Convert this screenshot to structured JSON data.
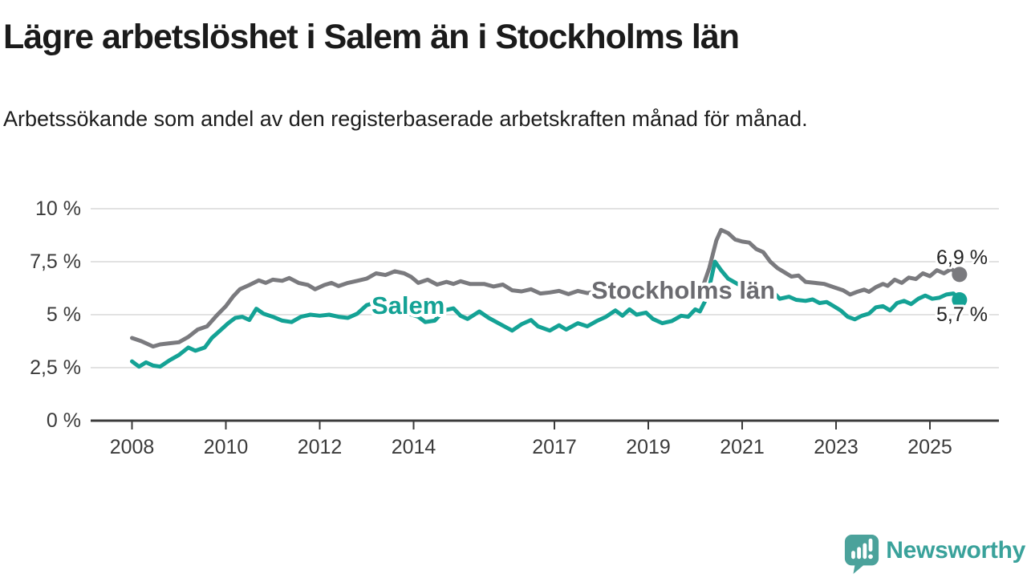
{
  "title": "Lägre arbetslöshet i Salem än i Stockholms län",
  "subtitle": "Arbetssökande som andel av den registerbaserade arbetskraften månad för månad.",
  "colors": {
    "salem_line": "#14a295",
    "stockholm_line": "#7a7a7e",
    "stockholm_label": "#6b6b70",
    "axis": "#3c3c3c",
    "grid": "#d9d9d9",
    "tick_text": "#3b3b3b",
    "value_text": "#232323",
    "logo_teal": "#4ba29b"
  },
  "annotations": {
    "salem_series_label": "Salem",
    "stockholm_series_label": "Stockholms län",
    "stockholm_end_value": "6,9 %",
    "salem_end_value": "5,7 %"
  },
  "logo": {
    "brand": "Newsworthy"
  },
  "chart_data": {
    "type": "line",
    "title": "Lägre arbetslöshet i Salem än i Stockholms län",
    "xlabel": "",
    "ylabel": "",
    "x_unit": "year (monthly data)",
    "xlim": [
      2007.9,
      2026.5
    ],
    "ylim": [
      0,
      10
    ],
    "grid": "horizontal",
    "legend_position": "inline-labels",
    "y_ticks": [
      {
        "value": 0,
        "label": "0 %"
      },
      {
        "value": 2.5,
        "label": "2,5 %"
      },
      {
        "value": 5,
        "label": "5 %"
      },
      {
        "value": 7.5,
        "label": "7,5 %"
      },
      {
        "value": 10,
        "label": "10 %"
      }
    ],
    "x_ticks": [
      {
        "value": 2008,
        "label": "2008"
      },
      {
        "value": 2010,
        "label": "2010"
      },
      {
        "value": 2012,
        "label": "2012"
      },
      {
        "value": 2014,
        "label": "2014"
      },
      {
        "value": 2017,
        "label": "2017"
      },
      {
        "value": 2019,
        "label": "2019"
      },
      {
        "value": 2021,
        "label": "2021"
      },
      {
        "value": 2023,
        "label": "2023"
      },
      {
        "value": 2025,
        "label": "2025"
      }
    ],
    "series": [
      {
        "name": "Stockholms län",
        "slug": "stockholms-lan",
        "color": "#7a7a7e",
        "end_label": "6,9 %",
        "end_value": 6.9,
        "points": [
          [
            2008.0,
            3.9
          ],
          [
            2008.2,
            3.75
          ],
          [
            2008.45,
            3.5
          ],
          [
            2008.6,
            3.6
          ],
          [
            2008.8,
            3.65
          ],
          [
            2009.0,
            3.7
          ],
          [
            2009.2,
            3.95
          ],
          [
            2009.4,
            4.3
          ],
          [
            2009.6,
            4.45
          ],
          [
            2009.8,
            4.95
          ],
          [
            2010.0,
            5.4
          ],
          [
            2010.15,
            5.85
          ],
          [
            2010.3,
            6.2
          ],
          [
            2010.5,
            6.4
          ],
          [
            2010.7,
            6.62
          ],
          [
            2010.85,
            6.5
          ],
          [
            2011.0,
            6.65
          ],
          [
            2011.2,
            6.6
          ],
          [
            2011.35,
            6.73
          ],
          [
            2011.55,
            6.5
          ],
          [
            2011.75,
            6.4
          ],
          [
            2011.9,
            6.2
          ],
          [
            2012.1,
            6.4
          ],
          [
            2012.25,
            6.5
          ],
          [
            2012.4,
            6.35
          ],
          [
            2012.6,
            6.5
          ],
          [
            2012.8,
            6.6
          ],
          [
            2013.0,
            6.7
          ],
          [
            2013.2,
            6.95
          ],
          [
            2013.4,
            6.87
          ],
          [
            2013.6,
            7.05
          ],
          [
            2013.8,
            6.95
          ],
          [
            2013.95,
            6.78
          ],
          [
            2014.1,
            6.5
          ],
          [
            2014.3,
            6.65
          ],
          [
            2014.5,
            6.42
          ],
          [
            2014.7,
            6.55
          ],
          [
            2014.85,
            6.45
          ],
          [
            2015.0,
            6.58
          ],
          [
            2015.2,
            6.45
          ],
          [
            2015.5,
            6.45
          ],
          [
            2015.7,
            6.33
          ],
          [
            2015.9,
            6.42
          ],
          [
            2016.1,
            6.15
          ],
          [
            2016.3,
            6.1
          ],
          [
            2016.5,
            6.2
          ],
          [
            2016.7,
            6.0
          ],
          [
            2016.9,
            6.05
          ],
          [
            2017.1,
            6.12
          ],
          [
            2017.3,
            5.97
          ],
          [
            2017.5,
            6.12
          ],
          [
            2017.7,
            6.02
          ],
          [
            2017.9,
            6.1
          ],
          [
            2018.2,
            6.05
          ],
          [
            2018.5,
            6.1
          ],
          [
            2018.8,
            6.02
          ],
          [
            2019.1,
            6.05
          ],
          [
            2019.4,
            6.1
          ],
          [
            2019.7,
            6.03
          ],
          [
            2019.95,
            6.1
          ],
          [
            2020.15,
            6.25
          ],
          [
            2020.3,
            7.2
          ],
          [
            2020.45,
            8.5
          ],
          [
            2020.55,
            9.0
          ],
          [
            2020.7,
            8.85
          ],
          [
            2020.85,
            8.55
          ],
          [
            2021.0,
            8.45
          ],
          [
            2021.15,
            8.4
          ],
          [
            2021.3,
            8.1
          ],
          [
            2021.45,
            7.95
          ],
          [
            2021.6,
            7.5
          ],
          [
            2021.75,
            7.2
          ],
          [
            2021.9,
            7.0
          ],
          [
            2022.05,
            6.8
          ],
          [
            2022.2,
            6.85
          ],
          [
            2022.35,
            6.55
          ],
          [
            2022.55,
            6.5
          ],
          [
            2022.75,
            6.45
          ],
          [
            2022.95,
            6.3
          ],
          [
            2023.15,
            6.15
          ],
          [
            2023.3,
            5.95
          ],
          [
            2023.45,
            6.08
          ],
          [
            2023.6,
            6.18
          ],
          [
            2023.7,
            6.08
          ],
          [
            2023.85,
            6.3
          ],
          [
            2024.0,
            6.45
          ],
          [
            2024.1,
            6.36
          ],
          [
            2024.25,
            6.65
          ],
          [
            2024.4,
            6.5
          ],
          [
            2024.55,
            6.75
          ],
          [
            2024.7,
            6.68
          ],
          [
            2024.85,
            6.95
          ],
          [
            2025.0,
            6.82
          ],
          [
            2025.15,
            7.1
          ],
          [
            2025.3,
            6.95
          ],
          [
            2025.45,
            7.15
          ],
          [
            2025.55,
            7.02
          ],
          [
            2025.63,
            6.9
          ]
        ]
      },
      {
        "name": "Salem",
        "slug": "salem",
        "color": "#14a295",
        "end_label": "5,7 %",
        "end_value": 5.7,
        "points": [
          [
            2008.0,
            2.8
          ],
          [
            2008.15,
            2.55
          ],
          [
            2008.3,
            2.75
          ],
          [
            2008.45,
            2.6
          ],
          [
            2008.6,
            2.55
          ],
          [
            2008.8,
            2.85
          ],
          [
            2009.0,
            3.1
          ],
          [
            2009.2,
            3.45
          ],
          [
            2009.35,
            3.3
          ],
          [
            2009.55,
            3.45
          ],
          [
            2009.7,
            3.9
          ],
          [
            2009.9,
            4.3
          ],
          [
            2010.05,
            4.6
          ],
          [
            2010.2,
            4.85
          ],
          [
            2010.35,
            4.9
          ],
          [
            2010.5,
            4.75
          ],
          [
            2010.65,
            5.28
          ],
          [
            2010.8,
            5.05
          ],
          [
            2011.0,
            4.9
          ],
          [
            2011.2,
            4.72
          ],
          [
            2011.4,
            4.65
          ],
          [
            2011.6,
            4.9
          ],
          [
            2011.8,
            5.0
          ],
          [
            2012.0,
            4.95
          ],
          [
            2012.2,
            5.0
          ],
          [
            2012.4,
            4.9
          ],
          [
            2012.6,
            4.85
          ],
          [
            2012.8,
            5.05
          ],
          [
            2013.0,
            5.45
          ],
          [
            2013.15,
            5.55
          ],
          [
            2013.3,
            5.28
          ],
          [
            2013.5,
            5.35
          ],
          [
            2013.7,
            5.15
          ],
          [
            2013.9,
            5.05
          ],
          [
            2014.1,
            4.9
          ],
          [
            2014.25,
            4.65
          ],
          [
            2014.45,
            4.72
          ],
          [
            2014.65,
            5.2
          ],
          [
            2014.85,
            5.3
          ],
          [
            2015.0,
            4.95
          ],
          [
            2015.15,
            4.8
          ],
          [
            2015.4,
            5.15
          ],
          [
            2015.6,
            4.85
          ],
          [
            2015.85,
            4.55
          ],
          [
            2016.1,
            4.25
          ],
          [
            2016.3,
            4.55
          ],
          [
            2016.5,
            4.75
          ],
          [
            2016.65,
            4.45
          ],
          [
            2016.9,
            4.25
          ],
          [
            2017.1,
            4.5
          ],
          [
            2017.25,
            4.3
          ],
          [
            2017.5,
            4.6
          ],
          [
            2017.7,
            4.45
          ],
          [
            2017.9,
            4.7
          ],
          [
            2018.1,
            4.9
          ],
          [
            2018.3,
            5.2
          ],
          [
            2018.45,
            4.95
          ],
          [
            2018.6,
            5.25
          ],
          [
            2018.75,
            5.0
          ],
          [
            2018.95,
            5.1
          ],
          [
            2019.1,
            4.8
          ],
          [
            2019.3,
            4.6
          ],
          [
            2019.5,
            4.7
          ],
          [
            2019.7,
            4.95
          ],
          [
            2019.85,
            4.9
          ],
          [
            2020.0,
            5.25
          ],
          [
            2020.1,
            5.15
          ],
          [
            2020.2,
            5.6
          ],
          [
            2020.3,
            6.3
          ],
          [
            2020.42,
            7.5
          ],
          [
            2020.55,
            7.1
          ],
          [
            2020.7,
            6.7
          ],
          [
            2020.9,
            6.45
          ],
          [
            2021.1,
            6.3
          ],
          [
            2021.3,
            6.25
          ],
          [
            2021.5,
            6.2
          ],
          [
            2021.65,
            6.1
          ],
          [
            2021.8,
            5.75
          ],
          [
            2022.0,
            5.85
          ],
          [
            2022.15,
            5.7
          ],
          [
            2022.35,
            5.65
          ],
          [
            2022.5,
            5.72
          ],
          [
            2022.65,
            5.55
          ],
          [
            2022.8,
            5.6
          ],
          [
            2022.95,
            5.4
          ],
          [
            2023.1,
            5.2
          ],
          [
            2023.25,
            4.9
          ],
          [
            2023.4,
            4.78
          ],
          [
            2023.55,
            4.95
          ],
          [
            2023.7,
            5.05
          ],
          [
            2023.85,
            5.35
          ],
          [
            2024.0,
            5.4
          ],
          [
            2024.15,
            5.2
          ],
          [
            2024.3,
            5.55
          ],
          [
            2024.45,
            5.65
          ],
          [
            2024.6,
            5.5
          ],
          [
            2024.75,
            5.75
          ],
          [
            2024.9,
            5.9
          ],
          [
            2025.05,
            5.75
          ],
          [
            2025.2,
            5.8
          ],
          [
            2025.35,
            5.95
          ],
          [
            2025.5,
            6.0
          ],
          [
            2025.63,
            5.7
          ]
        ]
      }
    ]
  }
}
